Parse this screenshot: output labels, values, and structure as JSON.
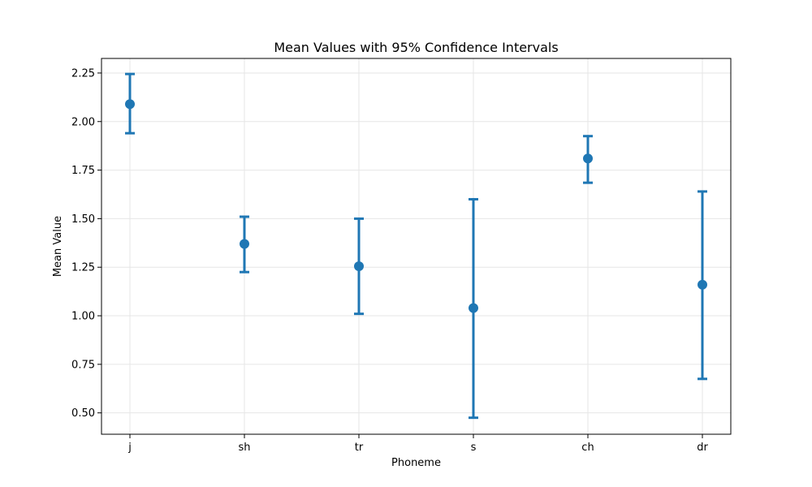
{
  "chart_data": {
    "type": "scatter",
    "title": "Mean Values with 95% Confidence Intervals",
    "xlabel": "Phoneme",
    "ylabel": "Mean Value",
    "categories": [
      "j",
      "sh",
      "tr",
      "s",
      "ch",
      "dr"
    ],
    "means": [
      2.09,
      1.37,
      1.255,
      1.04,
      1.81,
      1.16
    ],
    "ci_lower": [
      1.94,
      1.225,
      1.01,
      0.475,
      1.685,
      0.675
    ],
    "ci_upper": [
      2.245,
      1.51,
      1.5,
      1.6,
      1.925,
      1.64
    ],
    "ylim": [
      0.39,
      2.325
    ],
    "yticks": [
      0.5,
      0.75,
      1.0,
      1.25,
      1.5,
      1.75,
      2.0,
      2.25
    ],
    "ytick_labels": [
      "0.50",
      "0.75",
      "1.00",
      "1.25",
      "1.50",
      "1.75",
      "2.00",
      "2.25"
    ],
    "grid": true,
    "legend": "none",
    "colors": {
      "series": "#1f77b4",
      "grid": "#e6e6e6",
      "axis": "#000000"
    }
  }
}
